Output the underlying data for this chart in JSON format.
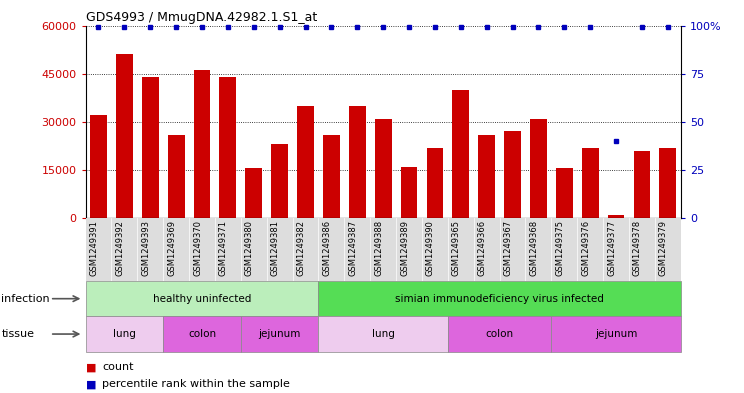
{
  "title": "GDS4993 / MmugDNA.42982.1.S1_at",
  "samples": [
    "GSM1249391",
    "GSM1249392",
    "GSM1249393",
    "GSM1249369",
    "GSM1249370",
    "GSM1249371",
    "GSM1249380",
    "GSM1249381",
    "GSM1249382",
    "GSM1249386",
    "GSM1249387",
    "GSM1249388",
    "GSM1249389",
    "GSM1249390",
    "GSM1249365",
    "GSM1249366",
    "GSM1249367",
    "GSM1249368",
    "GSM1249375",
    "GSM1249376",
    "GSM1249377",
    "GSM1249378",
    "GSM1249379"
  ],
  "counts": [
    32000,
    51000,
    44000,
    26000,
    46000,
    44000,
    15500,
    23000,
    35000,
    26000,
    35000,
    31000,
    16000,
    22000,
    40000,
    26000,
    27000,
    31000,
    15500,
    22000,
    1000,
    21000,
    22000
  ],
  "percentile_ranks": [
    99,
    99,
    99,
    99,
    99,
    99,
    99,
    99,
    99,
    99,
    99,
    99,
    99,
    99,
    99,
    99,
    99,
    99,
    99,
    99,
    40,
    99,
    99
  ],
  "bar_color": "#cc0000",
  "dot_color": "#0000bb",
  "infection_groups": [
    {
      "label": "healthy uninfected",
      "start": 0,
      "end": 9,
      "color": "#bbeebb"
    },
    {
      "label": "simian immunodeficiency virus infected",
      "start": 9,
      "end": 23,
      "color": "#55dd55"
    }
  ],
  "tissue_groups": [
    {
      "label": "lung",
      "start": 0,
      "end": 3,
      "color": "#eeccee"
    },
    {
      "label": "colon",
      "start": 3,
      "end": 6,
      "color": "#dd66dd"
    },
    {
      "label": "jejunum",
      "start": 6,
      "end": 9,
      "color": "#dd66dd"
    },
    {
      "label": "lung",
      "start": 9,
      "end": 14,
      "color": "#eeccee"
    },
    {
      "label": "colon",
      "start": 14,
      "end": 18,
      "color": "#dd66dd"
    },
    {
      "label": "jejunum",
      "start": 18,
      "end": 23,
      "color": "#dd66dd"
    }
  ],
  "ylim_left": [
    0,
    60000
  ],
  "ylim_right": [
    0,
    100
  ],
  "yticks_left": [
    0,
    15000,
    30000,
    45000,
    60000
  ],
  "yticks_right": [
    0,
    25,
    50,
    75,
    100
  ],
  "infection_label": "infection",
  "tissue_label": "tissue",
  "legend_count_label": "count",
  "legend_percentile_label": "percentile rank within the sample",
  "background_color": "#ffffff",
  "xticklabel_bg": "#dddddd"
}
